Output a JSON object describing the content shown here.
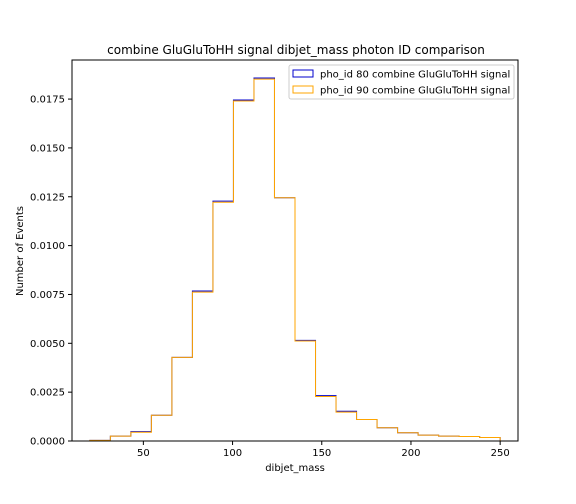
{
  "chart_data": {
    "type": "histogram",
    "title": "combine GluGluToHH signal dibjet_mass photon ID comparison",
    "xlabel": "dibjet_mass",
    "ylabel": "Number of Events",
    "xlim": [
      10,
      260
    ],
    "ylim": [
      0,
      0.0195
    ],
    "xticks": [
      50,
      100,
      150,
      200,
      250
    ],
    "yticks": [
      0.0,
      0.0025,
      0.005,
      0.0075,
      0.01,
      0.0125,
      0.015,
      0.0175
    ],
    "ytick_labels": [
      "0.0000",
      "0.0025",
      "0.0050",
      "0.0075",
      "0.0100",
      "0.0125",
      "0.0150",
      "0.0175"
    ],
    "grid": false,
    "legend_position": "upper right",
    "bin_edges": [
      20,
      31.5,
      43,
      54.5,
      66,
      77.5,
      89,
      100.5,
      112,
      123.5,
      135,
      146.5,
      158,
      169.5,
      181,
      192.5,
      204,
      215.5,
      227,
      238.5,
      250
    ],
    "series": [
      {
        "name": "pho_id 80 combine GluGluToHH signal",
        "color": "#0000cc",
        "values": [
          3e-05,
          0.00025,
          0.00048,
          0.00132,
          0.00428,
          0.00768,
          0.01228,
          0.01745,
          0.01858,
          0.01245,
          0.00515,
          0.00232,
          0.00152,
          0.0011,
          0.00068,
          0.00042,
          0.0003,
          0.00025,
          0.00023,
          0.00018
        ]
      },
      {
        "name": "pho_id 90 combine GluGluToHH signal",
        "color": "#ffa500",
        "values": [
          3e-05,
          0.00025,
          0.00045,
          0.00132,
          0.00428,
          0.00762,
          0.01222,
          0.0174,
          0.01852,
          0.01245,
          0.00512,
          0.00228,
          0.00148,
          0.0011,
          0.00068,
          0.00042,
          0.0003,
          0.00025,
          0.00023,
          0.00018
        ]
      }
    ]
  }
}
